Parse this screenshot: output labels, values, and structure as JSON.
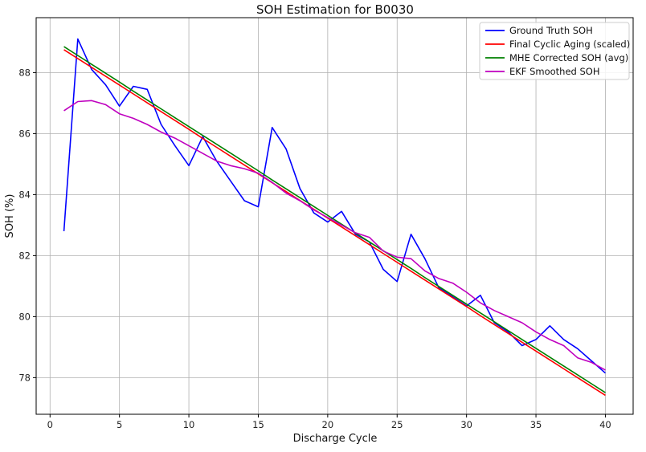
{
  "chart_data": {
    "type": "line",
    "title": "SOH Estimation for B0030",
    "xlabel": "Discharge Cycle",
    "ylabel": "SOH (%)",
    "xlim": [
      -1,
      42
    ],
    "ylim": [
      76.8,
      89.8
    ],
    "xticks": [
      0,
      5,
      10,
      15,
      20,
      25,
      30,
      35,
      40
    ],
    "yticks": [
      78,
      80,
      82,
      84,
      86,
      88
    ],
    "grid": true,
    "legend_position": "top-right",
    "x": [
      1,
      2,
      3,
      4,
      5,
      6,
      7,
      8,
      9,
      10,
      11,
      12,
      13,
      14,
      15,
      16,
      17,
      18,
      19,
      20,
      21,
      22,
      23,
      24,
      25,
      26,
      27,
      28,
      29,
      30,
      31,
      32,
      33,
      34,
      35,
      36,
      37,
      38,
      39,
      40
    ],
    "series": [
      {
        "name": "Ground Truth SOH",
        "color": "#0000ff",
        "values": [
          82.8,
          89.1,
          88.1,
          87.6,
          86.9,
          87.55,
          87.45,
          86.3,
          85.6,
          84.95,
          85.9,
          85.1,
          84.45,
          83.8,
          83.6,
          86.2,
          85.5,
          84.2,
          83.4,
          83.1,
          83.45,
          82.7,
          82.45,
          81.55,
          81.15,
          82.7,
          81.9,
          80.95,
          80.65,
          80.35,
          80.7,
          79.8,
          79.5,
          79.05,
          79.25,
          79.7,
          79.25,
          78.95,
          78.55,
          78.15
        ]
      },
      {
        "name": "Final Cyclic Aging (scaled)",
        "color": "#ff0000",
        "values": [
          88.75,
          88.46,
          88.17,
          87.88,
          87.59,
          87.3,
          87.01,
          86.72,
          86.43,
          86.14,
          85.84,
          85.55,
          85.26,
          84.97,
          84.68,
          84.39,
          84.1,
          83.81,
          83.52,
          83.23,
          82.94,
          82.65,
          82.36,
          82.07,
          81.78,
          81.49,
          81.2,
          80.91,
          80.62,
          80.33,
          80.03,
          79.74,
          79.45,
          79.16,
          78.87,
          78.58,
          78.29,
          78.0,
          77.71,
          77.42
        ]
      },
      {
        "name": "MHE Corrected SOH (avg)",
        "color": "#008000",
        "values": [
          88.85,
          88.56,
          88.27,
          87.98,
          87.69,
          87.39,
          87.1,
          86.81,
          86.52,
          86.23,
          85.94,
          85.65,
          85.36,
          85.07,
          84.78,
          84.48,
          84.19,
          83.9,
          83.61,
          83.32,
          83.03,
          82.74,
          82.45,
          82.16,
          81.87,
          81.58,
          81.28,
          80.99,
          80.7,
          80.41,
          80.12,
          79.83,
          79.54,
          79.25,
          78.96,
          78.67,
          78.38,
          78.09,
          77.8,
          77.51
        ]
      },
      {
        "name": "EKF Smoothed SOH",
        "color": "#bf00bf",
        "values": [
          86.75,
          87.05,
          87.08,
          86.95,
          86.65,
          86.5,
          86.3,
          86.05,
          85.85,
          85.6,
          85.35,
          85.1,
          84.95,
          84.85,
          84.7,
          84.4,
          84.05,
          83.8,
          83.5,
          83.25,
          83.0,
          82.75,
          82.6,
          82.15,
          81.95,
          81.9,
          81.5,
          81.25,
          81.1,
          80.8,
          80.45,
          80.2,
          80.0,
          79.8,
          79.5,
          79.25,
          79.05,
          78.65,
          78.5,
          78.25
        ]
      }
    ]
  }
}
